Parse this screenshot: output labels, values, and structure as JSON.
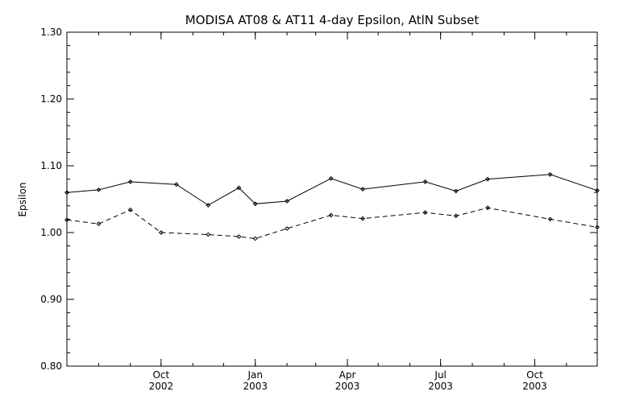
{
  "chart_data": {
    "type": "line",
    "title": "MODISA AT08 & AT11 4-day Epsilon, AtlN Subset",
    "ylabel": "Epsilon",
    "xlabel": "",
    "ylim": [
      0.8,
      1.3
    ],
    "y_ticks": [
      "0.80",
      "0.90",
      "1.00",
      "1.10",
      "1.20",
      "1.30"
    ],
    "xlim": [
      "2002-07-01",
      "2003-12-01"
    ],
    "x_ticks": [
      {
        "date": "2002-10-01",
        "month": "Oct",
        "year": "2002"
      },
      {
        "date": "2003-01-01",
        "month": "Jan",
        "year": "2003"
      },
      {
        "date": "2003-04-01",
        "month": "Apr",
        "year": "2003"
      },
      {
        "date": "2003-07-01",
        "month": "Jul",
        "year": "2003"
      },
      {
        "date": "2003-10-01",
        "month": "Oct",
        "year": "2003"
      }
    ],
    "series": [
      {
        "style": "solid",
        "points": [
          {
            "x": "2002-07-01",
            "y": 1.06
          },
          {
            "x": "2002-08-01",
            "y": 1.064
          },
          {
            "x": "2002-09-01",
            "y": 1.076
          },
          {
            "x": "2002-10-16",
            "y": 1.072
          },
          {
            "x": "2002-11-16",
            "y": 1.041
          },
          {
            "x": "2002-12-16",
            "y": 1.067
          },
          {
            "x": "2003-01-01",
            "y": 1.043
          },
          {
            "x": "2003-02-01",
            "y": 1.047
          },
          {
            "x": "2003-03-16",
            "y": 1.081
          },
          {
            "x": "2003-04-16",
            "y": 1.065
          },
          {
            "x": "2003-06-16",
            "y": 1.076
          },
          {
            "x": "2003-07-16",
            "y": 1.062
          },
          {
            "x": "2003-08-16",
            "y": 1.08
          },
          {
            "x": "2003-10-16",
            "y": 1.087
          },
          {
            "x": "2003-12-01",
            "y": 1.063
          }
        ]
      },
      {
        "style": "dashed",
        "points": [
          {
            "x": "2002-07-01",
            "y": 1.019
          },
          {
            "x": "2002-08-01",
            "y": 1.013
          },
          {
            "x": "2002-09-01",
            "y": 1.034
          },
          {
            "x": "2002-10-01",
            "y": 1.0
          },
          {
            "x": "2002-11-16",
            "y": 0.997
          },
          {
            "x": "2002-12-16",
            "y": 0.994
          },
          {
            "x": "2003-01-01",
            "y": 0.991
          },
          {
            "x": "2003-02-01",
            "y": 1.006
          },
          {
            "x": "2003-03-16",
            "y": 1.026
          },
          {
            "x": "2003-04-16",
            "y": 1.021
          },
          {
            "x": "2003-06-16",
            "y": 1.03
          },
          {
            "x": "2003-07-16",
            "y": 1.025
          },
          {
            "x": "2003-08-16",
            "y": 1.037
          },
          {
            "x": "2003-10-16",
            "y": 1.02
          },
          {
            "x": "2003-12-01",
            "y": 1.008
          }
        ]
      }
    ],
    "grid": false,
    "legend": "none",
    "line_color": "#000000"
  }
}
